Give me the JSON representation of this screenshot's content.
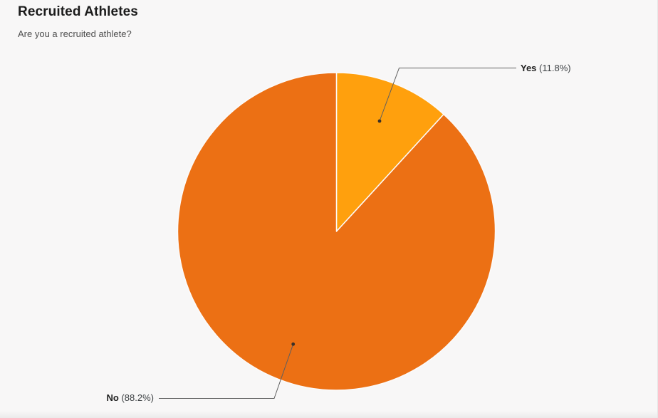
{
  "page": {
    "background_color": "#F8F7F7"
  },
  "chart_data": {
    "type": "pie",
    "title": "Recruited Athletes",
    "subtitle": "Are you a recruited athlete?",
    "categories": [
      "Yes",
      "No"
    ],
    "values": [
      11.8,
      88.2
    ],
    "value_unit": "percent",
    "colors": [
      "#FFA00D",
      "#EC7014"
    ],
    "slice_border_color": "#FCFBFB",
    "start_angle_deg": 0,
    "direction": "clockwise",
    "legend_position": "outside-callouts",
    "callout_line_color": "#5F5F5F",
    "callout_dot_color": "#3A3028",
    "labels": [
      {
        "name": "Yes",
        "percent_text": "(11.8%)"
      },
      {
        "name": "No",
        "percent_text": "(88.2%)"
      }
    ]
  }
}
